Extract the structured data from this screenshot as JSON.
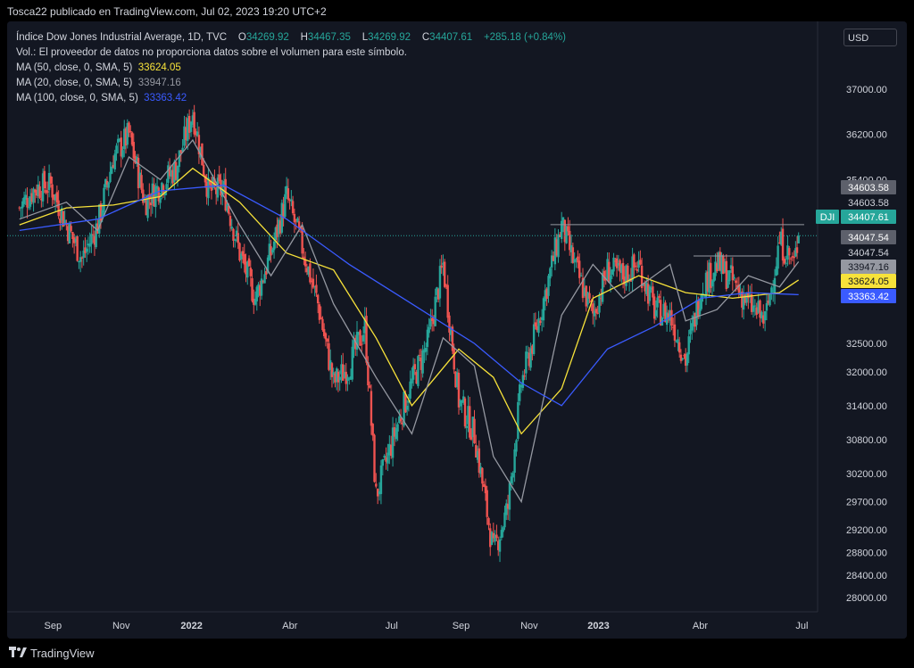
{
  "header": {
    "publish_line": "Tosca22 publicado en TradingView.com, Jul 02, 2023 19:20 UTC+2"
  },
  "legend": {
    "instrument": "Índice Dow Jones Industrial Average, 1D, TVC",
    "o_label": "O",
    "o_value": "34269.92",
    "h_label": "H",
    "h_value": "34467.35",
    "l_label": "L",
    "l_value": "34269.92",
    "c_label": "C",
    "c_value": "34407.61",
    "change": "+285.18 (+0.84%)",
    "volume_note": "Vol.: El proveedor de datos no proporciona datos sobre el volumen para este símbolo.",
    "ma50_label": "MA (50, close, 0, SMA, 5)",
    "ma50_value": "33624.05",
    "ma20_label": "MA (20, close, 0, SMA, 5)",
    "ma20_value": "33947.16",
    "ma100_label": "MA (100, close, 0, SMA, 5)",
    "ma100_value": "33363.42"
  },
  "currency": "USD",
  "footer": {
    "brand": "TradingView"
  },
  "colors": {
    "background": "#131722",
    "up": "#26a69a",
    "down": "#ef5350",
    "ma50": "#f7e23a",
    "ma20": "#9598a1",
    "ma100": "#3a5bff",
    "text": "#d1d4dc"
  },
  "chart_data": {
    "type": "candlestick",
    "timeframe": "1D",
    "ylim": [
      27750,
      38200
    ],
    "y_ticks": [
      "37000.00",
      "36200.00",
      "35400.00",
      "34603.58",
      "34047.54",
      "33947.16",
      "32500.00",
      "32000.00",
      "31400.00",
      "30800.00",
      "30200.00",
      "29700.00",
      "29200.00",
      "28800.00",
      "28400.00",
      "28000.00"
    ],
    "x_ticks": [
      "Sep",
      "Nov",
      "2022",
      "Abr",
      "Jul",
      "Sep",
      "Nov",
      "2023",
      "Abr",
      "Jul"
    ],
    "series": [
      {
        "name": "DJI",
        "points": [
          [
            "2021-08-02",
            34900
          ],
          [
            "2021-08-16",
            35250
          ],
          [
            "2021-08-30",
            35300
          ],
          [
            "2021-09-13",
            34600
          ],
          [
            "2021-09-27",
            34000
          ],
          [
            "2021-10-11",
            34600
          ],
          [
            "2021-10-25",
            35800
          ],
          [
            "2021-11-08",
            36200
          ],
          [
            "2021-11-22",
            35000
          ],
          [
            "2021-12-06",
            35300
          ],
          [
            "2021-12-20",
            35600
          ],
          [
            "2022-01-04",
            36600
          ],
          [
            "2022-01-18",
            35200
          ],
          [
            "2022-02-01",
            35200
          ],
          [
            "2022-02-15",
            34100
          ],
          [
            "2022-03-01",
            33300
          ],
          [
            "2022-03-15",
            34100
          ],
          [
            "2022-03-29",
            35100
          ],
          [
            "2022-04-12",
            34200
          ],
          [
            "2022-04-26",
            33200
          ],
          [
            "2022-05-10",
            31800
          ],
          [
            "2022-05-24",
            32100
          ],
          [
            "2022-06-07",
            32800
          ],
          [
            "2022-06-17",
            29800
          ],
          [
            "2022-07-05",
            31000
          ],
          [
            "2022-07-19",
            31800
          ],
          [
            "2022-08-02",
            32500
          ],
          [
            "2022-08-16",
            33900
          ],
          [
            "2022-08-30",
            31500
          ],
          [
            "2022-09-13",
            30900
          ],
          [
            "2022-09-30",
            28800
          ],
          [
            "2022-10-13",
            29600
          ],
          [
            "2022-10-25",
            31800
          ],
          [
            "2022-11-08",
            32800
          ],
          [
            "2022-11-30",
            34600
          ],
          [
            "2022-12-13",
            33800
          ],
          [
            "2022-12-28",
            33000
          ],
          [
            "2023-01-10",
            33800
          ],
          [
            "2023-01-24",
            33700
          ],
          [
            "2023-02-07",
            33900
          ],
          [
            "2023-02-21",
            33100
          ],
          [
            "2023-03-07",
            33000
          ],
          [
            "2023-03-21",
            32200
          ],
          [
            "2023-04-04",
            33500
          ],
          [
            "2023-04-18",
            33900
          ],
          [
            "2023-05-02",
            33600
          ],
          [
            "2023-05-16",
            33200
          ],
          [
            "2023-05-31",
            32900
          ],
          [
            "2023-06-13",
            34300
          ],
          [
            "2023-06-26",
            33900
          ],
          [
            "2023-06-30",
            34407.61
          ]
        ]
      }
    ],
    "moving_averages": [
      {
        "name": "MA (50, close, 0, SMA, 5)",
        "color": "#f7e23a",
        "last": 33624.05,
        "points": [
          [
            "2021-08-02",
            34600
          ],
          [
            "2021-09-13",
            34900
          ],
          [
            "2021-10-25",
            34950
          ],
          [
            "2021-12-06",
            35100
          ],
          [
            "2022-01-04",
            35600
          ],
          [
            "2022-02-15",
            35000
          ],
          [
            "2022-03-29",
            34100
          ],
          [
            "2022-05-10",
            33800
          ],
          [
            "2022-06-17",
            32600
          ],
          [
            "2022-07-19",
            31400
          ],
          [
            "2022-08-30",
            32400
          ],
          [
            "2022-09-30",
            31900
          ],
          [
            "2022-10-25",
            30900
          ],
          [
            "2022-11-30",
            31700
          ],
          [
            "2022-12-28",
            33300
          ],
          [
            "2023-02-07",
            33700
          ],
          [
            "2023-03-21",
            33400
          ],
          [
            "2023-05-02",
            33300
          ],
          [
            "2023-06-13",
            33400
          ],
          [
            "2023-06-30",
            33624.05
          ]
        ]
      },
      {
        "name": "MA (20, close, 0, SMA, 5)",
        "color": "#9598a1",
        "last": 33947.16,
        "points": [
          [
            "2021-08-02",
            34700
          ],
          [
            "2021-09-13",
            35000
          ],
          [
            "2021-10-11",
            34500
          ],
          [
            "2021-11-08",
            35800
          ],
          [
            "2021-12-06",
            35400
          ],
          [
            "2022-01-04",
            36100
          ],
          [
            "2022-02-15",
            34600
          ],
          [
            "2022-03-15",
            33700
          ],
          [
            "2022-04-12",
            34600
          ],
          [
            "2022-05-10",
            33200
          ],
          [
            "2022-06-17",
            31900
          ],
          [
            "2022-07-19",
            30900
          ],
          [
            "2022-08-16",
            32600
          ],
          [
            "2022-09-13",
            32100
          ],
          [
            "2022-09-30",
            30500
          ],
          [
            "2022-10-25",
            29700
          ],
          [
            "2022-11-30",
            33000
          ],
          [
            "2022-12-28",
            33900
          ],
          [
            "2023-01-24",
            33300
          ],
          [
            "2023-03-07",
            33900
          ],
          [
            "2023-03-21",
            32900
          ],
          [
            "2023-04-18",
            33100
          ],
          [
            "2023-05-16",
            33700
          ],
          [
            "2023-06-13",
            33500
          ],
          [
            "2023-06-30",
            33947.16
          ]
        ]
      },
      {
        "name": "MA (100, close, 0, SMA, 5)",
        "color": "#3a5bff",
        "last": 33363.42,
        "points": [
          [
            "2021-08-02",
            34500
          ],
          [
            "2021-10-11",
            34700
          ],
          [
            "2021-12-06",
            35200
          ],
          [
            "2022-02-01",
            35300
          ],
          [
            "2022-03-29",
            34700
          ],
          [
            "2022-05-24",
            33900
          ],
          [
            "2022-07-19",
            33200
          ],
          [
            "2022-09-13",
            32500
          ],
          [
            "2022-10-25",
            31800
          ],
          [
            "2022-11-30",
            31400
          ],
          [
            "2023-01-10",
            32400
          ],
          [
            "2023-02-21",
            32800
          ],
          [
            "2023-04-04",
            33300
          ],
          [
            "2023-05-16",
            33400
          ],
          [
            "2023-06-30",
            33363.42
          ]
        ]
      }
    ],
    "price_labels": [
      {
        "text": "34603.58",
        "kind": "gray"
      },
      {
        "text": "34603.58",
        "kind": "dark"
      },
      {
        "text": "34407.61",
        "kind": "last",
        "tag": "DJI"
      },
      {
        "text": "34047.54",
        "kind": "gray"
      },
      {
        "text": "34047.54",
        "kind": "dark"
      },
      {
        "text": "33947.16",
        "kind": "ma20"
      },
      {
        "text": "33624.05",
        "kind": "ma50"
      },
      {
        "text": "33363.42",
        "kind": "ma100"
      }
    ],
    "horizontal_lines": [
      {
        "value": 34603.58,
        "from": "2022-11-20",
        "to": "2023-07-05"
      },
      {
        "value": 34047.54,
        "from": "2023-03-28",
        "to": "2023-06-05"
      }
    ]
  }
}
